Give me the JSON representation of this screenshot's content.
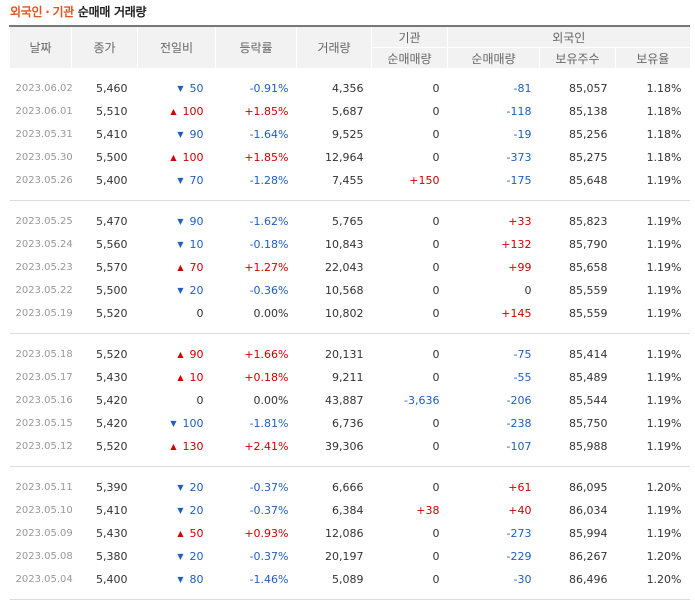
{
  "title": {
    "part1": "외국인",
    "sep": "·",
    "part2": "기관",
    "rest": "순매매 거래량"
  },
  "headers": {
    "date": "날짜",
    "close": "종가",
    "change": "전일비",
    "rate": "등락률",
    "volume": "거래량",
    "inst_group": "기관",
    "inst_net": "순매매량",
    "foreign_group": "외국인",
    "foreign_net": "순매매량",
    "foreign_hold": "보유주수",
    "foreign_ratio": "보유율"
  },
  "colors": {
    "up": "#d10000",
    "down": "#1f5fc0",
    "flat": "#333333"
  },
  "groups": [
    {
      "rows": [
        {
          "date": "2023.06.02",
          "close": "5,460",
          "dir": "down",
          "change": "50",
          "rate": "-0.91%",
          "volume": "4,356",
          "inst": "0",
          "foreign": "-81",
          "hold": "85,057",
          "ratio": "1.18%"
        },
        {
          "date": "2023.06.01",
          "close": "5,510",
          "dir": "up",
          "change": "100",
          "rate": "+1.85%",
          "volume": "5,687",
          "inst": "0",
          "foreign": "-118",
          "hold": "85,138",
          "ratio": "1.18%"
        },
        {
          "date": "2023.05.31",
          "close": "5,410",
          "dir": "down",
          "change": "90",
          "rate": "-1.64%",
          "volume": "9,525",
          "inst": "0",
          "foreign": "-19",
          "hold": "85,256",
          "ratio": "1.18%"
        },
        {
          "date": "2023.05.30",
          "close": "5,500",
          "dir": "up",
          "change": "100",
          "rate": "+1.85%",
          "volume": "12,964",
          "inst": "0",
          "foreign": "-373",
          "hold": "85,275",
          "ratio": "1.18%"
        },
        {
          "date": "2023.05.26",
          "close": "5,400",
          "dir": "down",
          "change": "70",
          "rate": "-1.28%",
          "volume": "7,455",
          "inst": "+150",
          "foreign": "-175",
          "hold": "85,648",
          "ratio": "1.19%"
        }
      ]
    },
    {
      "rows": [
        {
          "date": "2023.05.25",
          "close": "5,470",
          "dir": "down",
          "change": "90",
          "rate": "-1.62%",
          "volume": "5,765",
          "inst": "0",
          "foreign": "+33",
          "hold": "85,823",
          "ratio": "1.19%"
        },
        {
          "date": "2023.05.24",
          "close": "5,560",
          "dir": "down",
          "change": "10",
          "rate": "-0.18%",
          "volume": "10,843",
          "inst": "0",
          "foreign": "+132",
          "hold": "85,790",
          "ratio": "1.19%"
        },
        {
          "date": "2023.05.23",
          "close": "5,570",
          "dir": "up",
          "change": "70",
          "rate": "+1.27%",
          "volume": "22,043",
          "inst": "0",
          "foreign": "+99",
          "hold": "85,658",
          "ratio": "1.19%"
        },
        {
          "date": "2023.05.22",
          "close": "5,500",
          "dir": "down",
          "change": "20",
          "rate": "-0.36%",
          "volume": "10,568",
          "inst": "0",
          "foreign": "0",
          "hold": "85,559",
          "ratio": "1.19%"
        },
        {
          "date": "2023.05.19",
          "close": "5,520",
          "dir": "flat",
          "change": "0",
          "rate": "0.00%",
          "volume": "10,802",
          "inst": "0",
          "foreign": "+145",
          "hold": "85,559",
          "ratio": "1.19%"
        }
      ]
    },
    {
      "rows": [
        {
          "date": "2023.05.18",
          "close": "5,520",
          "dir": "up",
          "change": "90",
          "rate": "+1.66%",
          "volume": "20,131",
          "inst": "0",
          "foreign": "-75",
          "hold": "85,414",
          "ratio": "1.19%"
        },
        {
          "date": "2023.05.17",
          "close": "5,430",
          "dir": "up",
          "change": "10",
          "rate": "+0.18%",
          "volume": "9,211",
          "inst": "0",
          "foreign": "-55",
          "hold": "85,489",
          "ratio": "1.19%"
        },
        {
          "date": "2023.05.16",
          "close": "5,420",
          "dir": "flat",
          "change": "0",
          "rate": "0.00%",
          "volume": "43,887",
          "inst": "-3,636",
          "foreign": "-206",
          "hold": "85,544",
          "ratio": "1.19%"
        },
        {
          "date": "2023.05.15",
          "close": "5,420",
          "dir": "down",
          "change": "100",
          "rate": "-1.81%",
          "volume": "6,736",
          "inst": "0",
          "foreign": "-238",
          "hold": "85,750",
          "ratio": "1.19%"
        },
        {
          "date": "2023.05.12",
          "close": "5,520",
          "dir": "up",
          "change": "130",
          "rate": "+2.41%",
          "volume": "39,306",
          "inst": "0",
          "foreign": "-107",
          "hold": "85,988",
          "ratio": "1.19%"
        }
      ]
    },
    {
      "rows": [
        {
          "date": "2023.05.11",
          "close": "5,390",
          "dir": "down",
          "change": "20",
          "rate": "-0.37%",
          "volume": "6,666",
          "inst": "0",
          "foreign": "+61",
          "hold": "86,095",
          "ratio": "1.20%"
        },
        {
          "date": "2023.05.10",
          "close": "5,410",
          "dir": "down",
          "change": "20",
          "rate": "-0.37%",
          "volume": "6,384",
          "inst": "+38",
          "foreign": "+40",
          "hold": "86,034",
          "ratio": "1.19%"
        },
        {
          "date": "2023.05.09",
          "close": "5,430",
          "dir": "up",
          "change": "50",
          "rate": "+0.93%",
          "volume": "12,086",
          "inst": "0",
          "foreign": "-273",
          "hold": "85,994",
          "ratio": "1.19%"
        },
        {
          "date": "2023.05.08",
          "close": "5,380",
          "dir": "down",
          "change": "20",
          "rate": "-0.37%",
          "volume": "20,197",
          "inst": "0",
          "foreign": "-229",
          "hold": "86,267",
          "ratio": "1.20%"
        },
        {
          "date": "2023.05.04",
          "close": "5,400",
          "dir": "down",
          "change": "80",
          "rate": "-1.46%",
          "volume": "5,089",
          "inst": "0",
          "foreign": "-30",
          "hold": "86,496",
          "ratio": "1.20%"
        }
      ]
    }
  ]
}
